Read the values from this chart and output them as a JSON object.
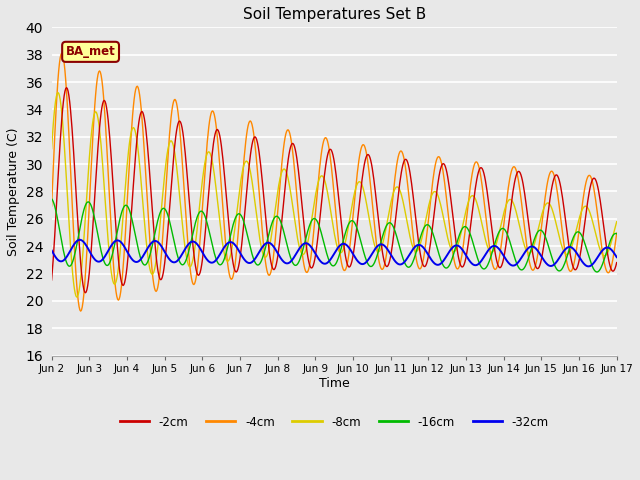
{
  "title": "Soil Temperatures Set B",
  "xlabel": "Time",
  "ylabel": "Soil Temperature (C)",
  "ylim": [
    16,
    40
  ],
  "yticks": [
    16,
    18,
    20,
    22,
    24,
    26,
    28,
    30,
    32,
    34,
    36,
    38,
    40
  ],
  "background_color": "#e8e8e8",
  "plot_bg_color": "#e8e8e8",
  "colors": {
    "-2cm": "#cc0000",
    "-4cm": "#ff8800",
    "-8cm": "#ddcc00",
    "-16cm": "#00bb00",
    "-32cm": "#0000ee"
  },
  "legend_label": "BA_met",
  "legend_box_color": "#ffff99",
  "legend_box_edge": "#8B0000",
  "n_days": 15,
  "points_per_day": 48,
  "start_day": 2
}
